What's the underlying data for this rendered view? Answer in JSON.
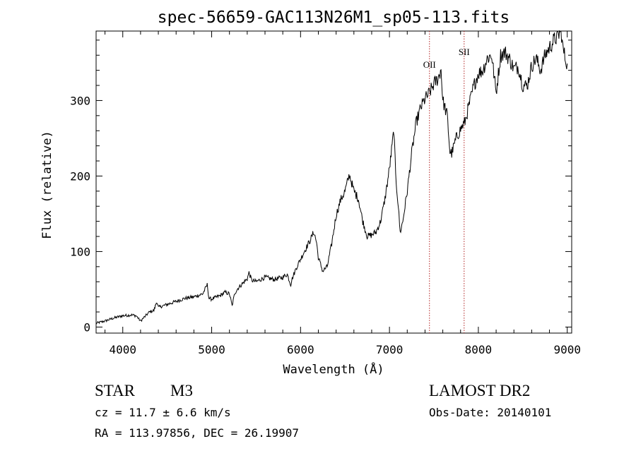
{
  "chart_data": {
    "type": "line",
    "title": "spec-56659-GAC113N26M1_sp05-113.fits",
    "xlabel": "Wavelength (Å)",
    "ylabel": "Flux (relative)",
    "xlim": [
      3700,
      9050
    ],
    "ylim": [
      -8,
      392
    ],
    "x_ticks": [
      4000,
      5000,
      6000,
      7000,
      8000,
      9000
    ],
    "x_tick_labels": [
      "4000",
      "5000",
      "6000",
      "7000",
      "8000",
      "9000"
    ],
    "y_ticks": [
      0,
      100,
      200,
      300
    ],
    "y_tick_labels": [
      "0",
      "100",
      "200",
      "300"
    ],
    "grid": false,
    "series": [
      {
        "color": "#000000",
        "points": [
          [
            3700,
            5
          ],
          [
            3800,
            8
          ],
          [
            3900,
            12
          ],
          [
            4000,
            15
          ],
          [
            4100,
            16
          ],
          [
            4150,
            15
          ],
          [
            4200,
            8
          ],
          [
            4250,
            14
          ],
          [
            4300,
            20
          ],
          [
            4350,
            22
          ],
          [
            4383,
            34
          ],
          [
            4400,
            26
          ],
          [
            4500,
            30
          ],
          [
            4600,
            34
          ],
          [
            4700,
            38
          ],
          [
            4800,
            40
          ],
          [
            4900,
            44
          ],
          [
            4950,
            56
          ],
          [
            4970,
            38
          ],
          [
            5000,
            37
          ],
          [
            5100,
            42
          ],
          [
            5150,
            46
          ],
          [
            5200,
            44
          ],
          [
            5230,
            28
          ],
          [
            5260,
            45
          ],
          [
            5300,
            52
          ],
          [
            5400,
            64
          ],
          [
            5420,
            72
          ],
          [
            5450,
            62
          ],
          [
            5500,
            60
          ],
          [
            5600,
            66
          ],
          [
            5700,
            63
          ],
          [
            5800,
            66
          ],
          [
            5850,
            70
          ],
          [
            5890,
            56
          ],
          [
            5900,
            62
          ],
          [
            5950,
            78
          ],
          [
            6000,
            90
          ],
          [
            6050,
            102
          ],
          [
            6100,
            113
          ],
          [
            6150,
            126
          ],
          [
            6180,
            112
          ],
          [
            6200,
            92
          ],
          [
            6250,
            74
          ],
          [
            6300,
            80
          ],
          [
            6350,
            110
          ],
          [
            6400,
            148
          ],
          [
            6450,
            168
          ],
          [
            6500,
            180
          ],
          [
            6550,
            202
          ],
          [
            6600,
            180
          ],
          [
            6650,
            170
          ],
          [
            6700,
            140
          ],
          [
            6750,
            120
          ],
          [
            6800,
            122
          ],
          [
            6850,
            126
          ],
          [
            6900,
            140
          ],
          [
            6950,
            170
          ],
          [
            7000,
            210
          ],
          [
            7030,
            240
          ],
          [
            7050,
            262
          ],
          [
            7070,
            200
          ],
          [
            7100,
            160
          ],
          [
            7120,
            125
          ],
          [
            7150,
            140
          ],
          [
            7200,
            180
          ],
          [
            7250,
            230
          ],
          [
            7300,
            270
          ],
          [
            7350,
            290
          ],
          [
            7400,
            302
          ],
          [
            7450,
            310
          ],
          [
            7500,
            322
          ],
          [
            7550,
            330
          ],
          [
            7580,
            342
          ],
          [
            7600,
            300
          ],
          [
            7650,
            280
          ],
          [
            7680,
            232
          ],
          [
            7700,
            230
          ],
          [
            7750,
            250
          ],
          [
            7800,
            262
          ],
          [
            7850,
            272
          ],
          [
            7900,
            296
          ],
          [
            7950,
            320
          ],
          [
            8000,
            336
          ],
          [
            8050,
            340
          ],
          [
            8100,
            356
          ],
          [
            8150,
            360
          ],
          [
            8180,
            330
          ],
          [
            8200,
            310
          ],
          [
            8250,
            360
          ],
          [
            8300,
            364
          ],
          [
            8350,
            355
          ],
          [
            8400,
            342
          ],
          [
            8450,
            345
          ],
          [
            8500,
            320
          ],
          [
            8550,
            320
          ],
          [
            8600,
            346
          ],
          [
            8650,
            356
          ],
          [
            8700,
            340
          ],
          [
            8750,
            360
          ],
          [
            8800,
            370
          ],
          [
            8850,
            380
          ],
          [
            8900,
            386
          ],
          [
            8930,
            396
          ],
          [
            8950,
            370
          ],
          [
            8980,
            355
          ],
          [
            9000,
            349
          ]
        ]
      }
    ],
    "annotations": [
      {
        "label": "OII",
        "x": 7450
      },
      {
        "label": "SII",
        "x": 7840
      }
    ],
    "annotation_color": "#b22222"
  },
  "info": {
    "object_class": "STAR",
    "subclass": "M3",
    "redshift": "cz =  11.7 ± 6.6 km/s",
    "coords": "RA = 113.97856, DEC =  26.19907",
    "survey": "LAMOST DR2",
    "obs_date": "Obs-Date: 20140101"
  }
}
